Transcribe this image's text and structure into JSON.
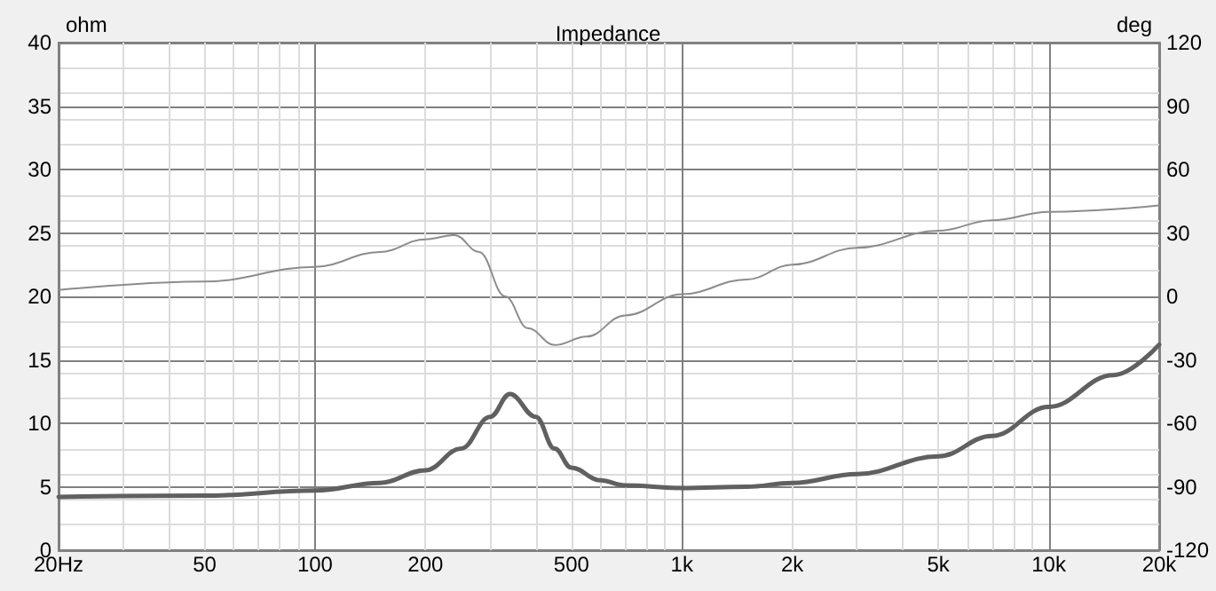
{
  "chart_data": {
    "type": "line",
    "title": "Impedance",
    "ylabel": "ohm",
    "y2label": "deg",
    "series": [
      {
        "color": "#606060",
        "x": [
          20,
          50,
          100,
          150,
          200,
          250,
          300,
          340,
          400,
          450,
          500,
          600,
          700,
          1000,
          1500,
          2000,
          3000,
          5000,
          7000,
          10000,
          15000,
          20000
        ],
        "values": [
          4.2,
          4.3,
          4.7,
          5.3,
          6.3,
          8.0,
          10.5,
          12.3,
          10.5,
          8.0,
          6.5,
          5.5,
          5.1,
          4.9,
          5.0,
          5.3,
          6.0,
          7.4,
          9.0,
          11.3,
          13.8,
          16.2
        ]
      },
      {
        "color": "#8c8c8c",
        "axis": "y2",
        "x": [
          20,
          50,
          100,
          150,
          200,
          240,
          280,
          330,
          380,
          450,
          550,
          700,
          1000,
          1500,
          2000,
          3000,
          5000,
          7000,
          10000,
          20000
        ],
        "values": [
          3,
          7,
          14,
          21,
          27,
          29,
          21,
          0,
          -15,
          -23,
          -19,
          -9,
          1,
          8,
          15,
          23,
          31,
          36,
          40,
          43
        ]
      }
    ],
    "log": "x",
    "xlim": [
      20,
      20000
    ],
    "xticks": [
      {
        "value": 20,
        "label": "20Hz"
      },
      50,
      100,
      200,
      500,
      {
        "value": 1000,
        "label": "1k"
      },
      {
        "value": 2000,
        "label": "2k"
      },
      {
        "value": 5000,
        "label": "5k"
      },
      {
        "value": 10000,
        "label": "10k"
      },
      {
        "value": 20000,
        "label": "20k"
      }
    ],
    "ylim": [
      0,
      40
    ],
    "yticks": [
      0,
      5,
      10,
      15,
      20,
      25,
      30,
      35,
      40
    ],
    "y2lim": [
      -120,
      120
    ],
    "y2ticks": [
      -120,
      -90,
      -60,
      -30,
      0,
      30,
      60,
      90,
      120
    ],
    "grid": true,
    "marker": "none",
    "line_style": "solid"
  }
}
